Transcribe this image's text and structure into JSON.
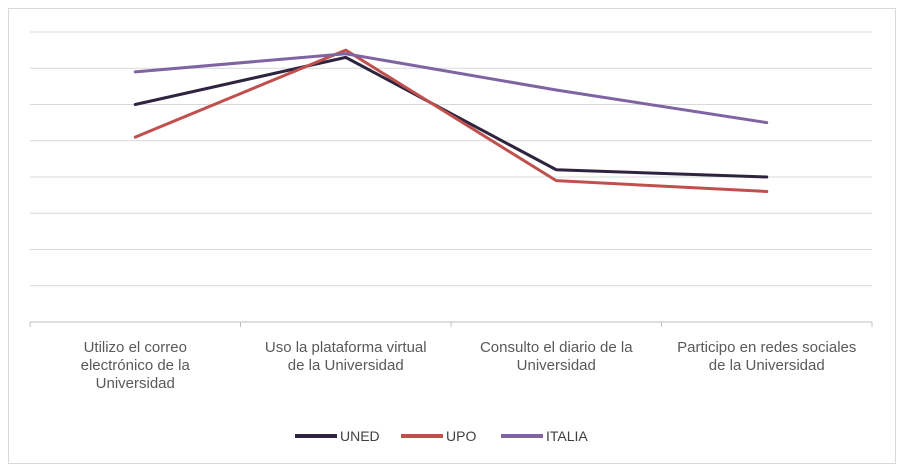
{
  "chart_data": {
    "type": "line",
    "title": "",
    "xlabel": "",
    "ylabel": "",
    "ylim": [
      0,
      8
    ],
    "y_gridlines": 8,
    "y_tick_labels_visible": false,
    "grid": true,
    "legend_position": "bottom",
    "categories": [
      [
        "Utilizo el correo",
        "electrónico de la",
        "Universidad"
      ],
      [
        "Uso la plataforma virtual",
        "de la Universidad"
      ],
      [
        "Consulto el diario de la",
        "Universidad"
      ],
      [
        "Participo en redes sociales",
        "de la Universidad"
      ]
    ],
    "series": [
      {
        "name": "UNED",
        "color": "#2e2440",
        "values": [
          6.0,
          7.3,
          4.2,
          4.0
        ]
      },
      {
        "name": "UPO",
        "color": "#c0504d",
        "values": [
          5.1,
          7.5,
          3.9,
          3.6
        ]
      },
      {
        "name": "ITALIA",
        "color": "#8064a2",
        "values": [
          6.9,
          7.4,
          6.4,
          5.5
        ]
      }
    ]
  }
}
